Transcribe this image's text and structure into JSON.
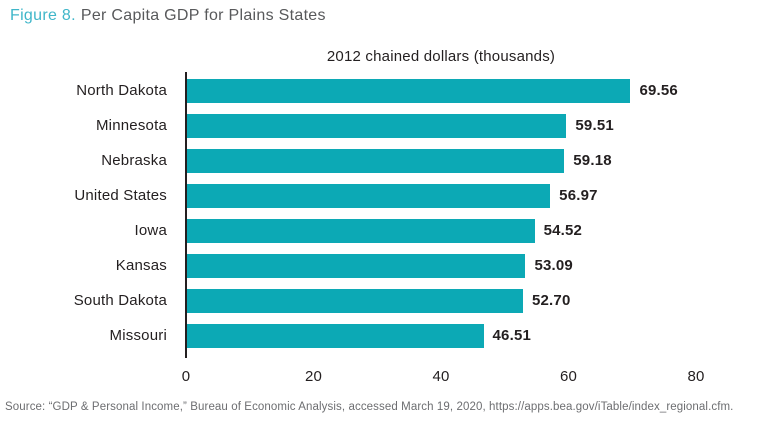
{
  "figure": {
    "label": "Figure 8.",
    "title": "Per Capita GDP for Plains States"
  },
  "chart_data": {
    "type": "bar",
    "orientation": "horizontal",
    "title": "2012 chained dollars (thousands)",
    "categories": [
      "North Dakota",
      "Minnesota",
      "Nebraska",
      "United States",
      "Iowa",
      "Kansas",
      "South Dakota",
      "Missouri"
    ],
    "values": [
      69.56,
      59.51,
      59.18,
      56.97,
      54.52,
      53.09,
      52.7,
      46.51
    ],
    "value_labels": [
      "69.56",
      "59.51",
      "59.18",
      "56.97",
      "54.52",
      "53.09",
      "52.70",
      "46.51"
    ],
    "xlim": [
      0,
      80
    ],
    "x_ticks": [
      0,
      20,
      40,
      60,
      80
    ],
    "bar_color": "#0ca9b5",
    "axis_color": "#231f20",
    "grid": false,
    "legend": false
  },
  "source": "Source: “GDP & Personal Income,” Bureau of Economic Analysis, accessed March 19, 2020, https://apps.bea.gov/iTable/index_regional.cfm."
}
